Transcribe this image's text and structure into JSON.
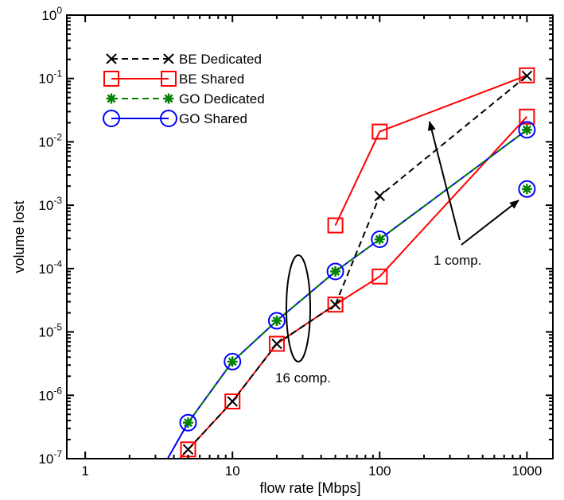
{
  "chart_data": {
    "type": "line",
    "xlabel": "flow rate [Mbps]",
    "ylabel": "volume lost",
    "xscale": "log",
    "yscale": "log",
    "xlim": [
      0.75,
      1500
    ],
    "ylim": [
      1e-07,
      1
    ],
    "grid": false,
    "legend_position": "top-left",
    "x_ticks": [
      {
        "value": 1,
        "label": "1"
      },
      {
        "value": 10,
        "label": "10"
      },
      {
        "value": 100,
        "label": "100"
      },
      {
        "value": 1000,
        "label": "1000"
      }
    ],
    "y_ticks": [
      {
        "value": 1e-07,
        "base": "10",
        "exp": "-7"
      },
      {
        "value": 1e-06,
        "base": "10",
        "exp": "-6"
      },
      {
        "value": 1e-05,
        "base": "10",
        "exp": "-5"
      },
      {
        "value": 0.0001,
        "base": "10",
        "exp": "-4"
      },
      {
        "value": 0.001,
        "base": "10",
        "exp": "-3"
      },
      {
        "value": 0.01,
        "base": "10",
        "exp": "-2"
      },
      {
        "value": 0.1,
        "base": "10",
        "exp": "-1"
      },
      {
        "value": 1,
        "base": "10",
        "exp": "0"
      }
    ],
    "series": [
      {
        "name": "BE Dedicated",
        "color": "#000000",
        "marker": "x",
        "dashed": true,
        "segments": [
          [
            [
              5,
              1.4e-07
            ],
            [
              10,
              8e-07
            ],
            [
              20,
              6.5e-06
            ],
            [
              50,
              2.7e-05
            ]
          ],
          [
            [
              50,
              2.7e-05
            ],
            [
              100,
              0.0014
            ],
            [
              1000,
              0.11
            ]
          ]
        ],
        "points": [
          [
            5,
            1.4e-07
          ],
          [
            10,
            8e-07
          ],
          [
            20,
            6.5e-06
          ],
          [
            50,
            2.7e-05
          ],
          [
            100,
            0.0014
          ],
          [
            1000,
            0.11
          ]
        ]
      },
      {
        "name": "BE Shared",
        "color": "#ff0000",
        "marker": "square",
        "dashed": false,
        "segments": [
          [
            [
              3.6,
              6e-08
            ],
            [
              5,
              1.4e-07
            ],
            [
              10,
              8e-07
            ],
            [
              20,
              6.5e-06
            ],
            [
              50,
              2.7e-05
            ],
            [
              100,
              7.5e-05
            ],
            [
              1000,
              0.025
            ]
          ],
          [
            [
              50,
              0.00048
            ],
            [
              100,
              0.0145
            ],
            [
              1000,
              0.112
            ]
          ]
        ],
        "points": [
          [
            5,
            1.4e-07
          ],
          [
            10,
            8e-07
          ],
          [
            20,
            6.5e-06
          ],
          [
            50,
            2.7e-05
          ],
          [
            100,
            7.5e-05
          ],
          [
            1000,
            0.025
          ],
          [
            50,
            0.00048
          ],
          [
            100,
            0.0145
          ],
          [
            1000,
            0.112
          ]
        ]
      },
      {
        "name": "GO Dedicated",
        "color": "#008000",
        "marker": "star",
        "dashed": true,
        "segments": [
          [
            [
              5,
              3.7e-07
            ],
            [
              10,
              3.4e-06
            ],
            [
              20,
              1.5e-05
            ],
            [
              50,
              9e-05
            ],
            [
              100,
              0.00029
            ],
            [
              1000,
              0.0155
            ]
          ]
        ],
        "points": [
          [
            5,
            3.7e-07
          ],
          [
            10,
            3.4e-06
          ],
          [
            20,
            1.5e-05
          ],
          [
            50,
            9e-05
          ],
          [
            100,
            0.00029
          ],
          [
            1000,
            0.0155
          ],
          [
            1000,
            0.0018
          ]
        ]
      },
      {
        "name": "GO Shared",
        "color": "#0000ff",
        "marker": "circle",
        "dashed": false,
        "segments": [
          [
            [
              3.2,
              6e-08
            ],
            [
              5,
              3.7e-07
            ],
            [
              10,
              3.4e-06
            ],
            [
              20,
              1.5e-05
            ],
            [
              50,
              9e-05
            ],
            [
              100,
              0.00029
            ],
            [
              1000,
              0.0155
            ]
          ]
        ],
        "points": [
          [
            5,
            3.7e-07
          ],
          [
            10,
            3.4e-06
          ],
          [
            20,
            1.5e-05
          ],
          [
            50,
            9e-05
          ],
          [
            100,
            0.00029
          ],
          [
            1000,
            0.0155
          ],
          [
            1000,
            0.0018
          ]
        ]
      }
    ],
    "annotations": [
      {
        "text": "16 comp."
      },
      {
        "text": "1 comp."
      }
    ]
  }
}
